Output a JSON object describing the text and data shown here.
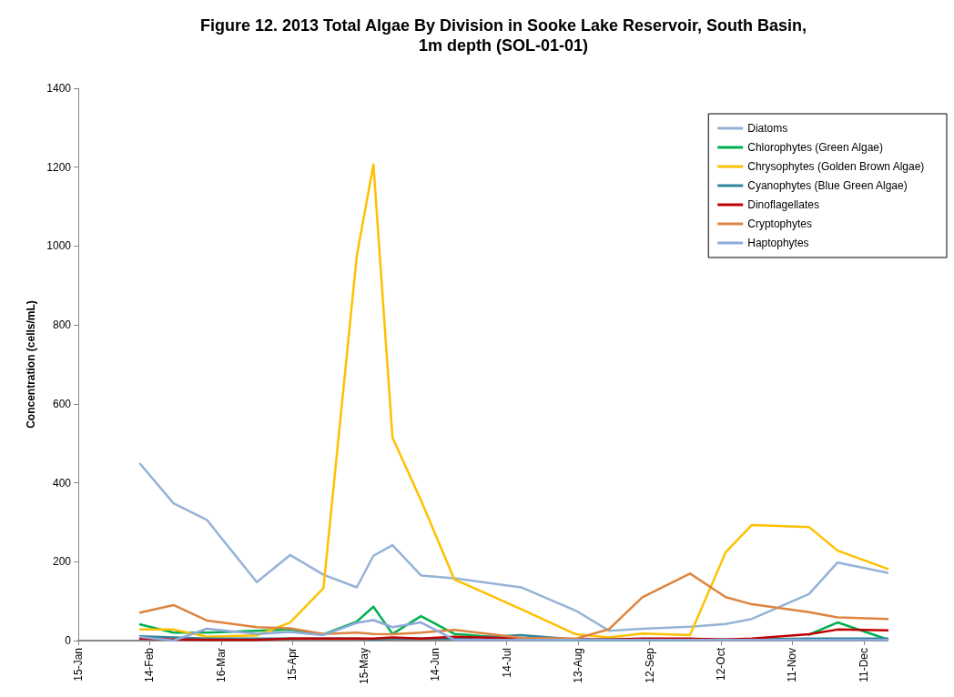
{
  "chart_data": {
    "type": "line",
    "title": "Figure 12. 2013 Total Algae By Division in Sooke Lake Reservoir, South Basin,\n1m depth (SOL-01-01)",
    "ylabel": "Concentration (cells/mL)",
    "x": [
      "2013-02-10",
      "2013-02-24",
      "2013-03-10",
      "2013-03-31",
      "2013-04-14",
      "2013-04-28",
      "2013-05-12",
      "2013-05-19",
      "2013-05-27",
      "2013-06-08",
      "2013-06-22",
      "2013-07-20",
      "2013-08-12",
      "2013-08-26",
      "2013-09-09",
      "2013-09-29",
      "2013-10-14",
      "2013-10-25",
      "2013-11-18",
      "2013-11-30",
      "2013-12-21"
    ],
    "xlim": [
      "2013-01-15",
      "2013-12-21"
    ],
    "xticks": [
      {
        "value": "2013-01-15",
        "label": "15-Jan"
      },
      {
        "value": "2013-02-14",
        "label": "14-Feb"
      },
      {
        "value": "2013-03-16",
        "label": "16-Mar"
      },
      {
        "value": "2013-04-15",
        "label": "15-Apr"
      },
      {
        "value": "2013-05-15",
        "label": "15-May"
      },
      {
        "value": "2013-06-14",
        "label": "14-Jun"
      },
      {
        "value": "2013-07-14",
        "label": "14-Jul"
      },
      {
        "value": "2013-08-13",
        "label": "13-Aug"
      },
      {
        "value": "2013-09-12",
        "label": "12-Sep"
      },
      {
        "value": "2013-10-12",
        "label": "12-Oct"
      },
      {
        "value": "2013-11-11",
        "label": "11-Nov"
      },
      {
        "value": "2013-12-11",
        "label": "11-Dec"
      }
    ],
    "ylim": [
      0,
      1400
    ],
    "yticks": [
      0,
      200,
      400,
      600,
      800,
      1000,
      1200,
      1400
    ],
    "grid": false,
    "legend": "top right",
    "marker": "none",
    "line_style": "solid",
    "series": [
      {
        "name": "Diatoms",
        "color": "#95b3d7",
        "values": [
          448,
          348,
          306,
          148,
          217,
          167,
          135,
          215,
          242,
          165,
          158,
          135,
          76,
          25,
          30,
          35,
          42,
          55,
          118,
          198,
          172
        ]
      },
      {
        "name": "Chlorophytes (Green Algae)",
        "color": "#00b050",
        "values": [
          41,
          20,
          20,
          25,
          28,
          16,
          48,
          86,
          17,
          62,
          17,
          3,
          2,
          2,
          2,
          2,
          null,
          null,
          15,
          46,
          3
        ]
      },
      {
        "name": "Chrysophytes (Golden Brown Algae)",
        "color": "#ffc000",
        "values": [
          28,
          28,
          10,
          13,
          46,
          133,
          975,
          1207,
          515,
          355,
          155,
          80,
          16,
          8,
          18,
          14,
          224,
          293,
          288,
          228,
          182
        ]
      },
      {
        "name": "Cyanophytes (Blue Green Algae)",
        "color": "#31849b",
        "values": [
          11,
          8,
          5,
          5,
          5,
          5,
          5,
          3,
          5,
          5,
          5,
          14,
          3,
          3,
          3,
          3,
          3,
          3,
          5,
          5,
          5
        ]
      },
      {
        "name": "Dinoflagellates",
        "color": "#c00000",
        "values": [
          5,
          3,
          2,
          2,
          5,
          5,
          5,
          5,
          8,
          5,
          10,
          5,
          3,
          3,
          5,
          5,
          3,
          5,
          16,
          28,
          26
        ]
      },
      {
        "name": "Cryptophytes",
        "color": "#dc8440",
        "values": [
          71,
          90,
          51,
          34,
          31,
          17,
          20,
          17,
          16,
          20,
          27,
          7,
          5,
          29,
          110,
          170,
          110,
          92,
          72,
          59,
          55
        ]
      },
      {
        "name": "Haptophytes",
        "color": "#8eaadb",
        "values": [
          9,
          0,
          30,
          17,
          22,
          14,
          45,
          52,
          34,
          46,
          2,
          2,
          2,
          2,
          2,
          2,
          2,
          2,
          2,
          2,
          2
        ]
      }
    ]
  }
}
